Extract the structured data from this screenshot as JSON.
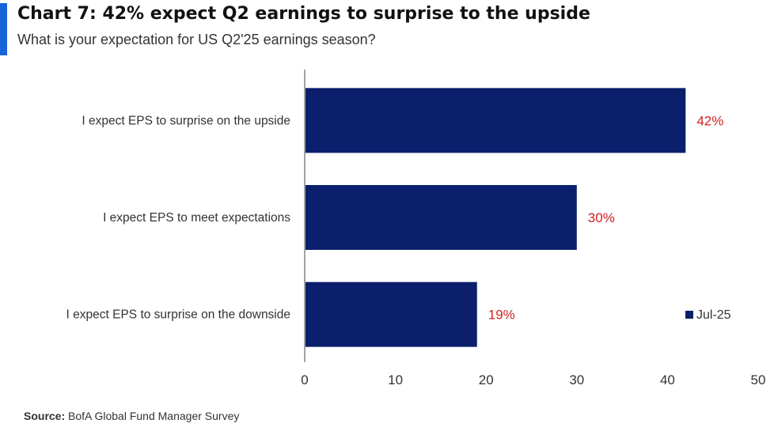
{
  "header": {
    "title": "Chart 7: 42% expect Q2 earnings to surprise to the upside",
    "subtitle": "What is your expectation for US Q2'25 earnings season?"
  },
  "source": {
    "label": "Source:",
    "text": " BofA Global Fund Manager Survey"
  },
  "colors": {
    "accent": "#1565d8",
    "bar": "#0b1f6d",
    "value_label": "#d31e1e"
  },
  "chart_data": {
    "type": "bar",
    "orientation": "horizontal",
    "categories": [
      "I expect EPS to surprise on the upside",
      "I expect EPS to meet expectations",
      "I expect EPS to surprise on the downside"
    ],
    "series": [
      {
        "name": "Jul-25",
        "values": [
          42,
          30,
          19
        ]
      }
    ],
    "value_labels": [
      "42%",
      "30%",
      "19%"
    ],
    "xlim": [
      0,
      50
    ],
    "xticks": [
      0,
      10,
      20,
      30,
      40,
      50
    ],
    "grid": false,
    "legend_position": "right"
  }
}
